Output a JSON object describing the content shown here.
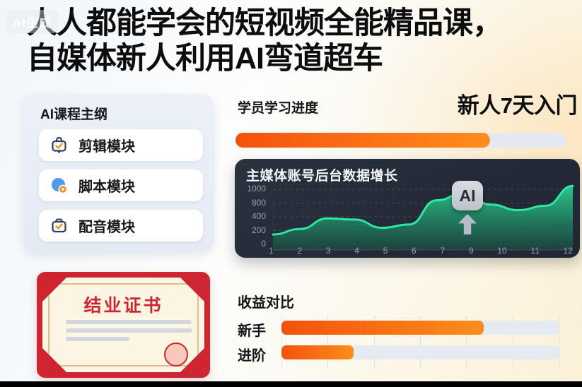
{
  "watermark": "AI生成",
  "headline": {
    "line1": "人人都能学会的短视频全能精品课，",
    "line2": "自媒体新人利用AI弯道超车"
  },
  "sidebar": {
    "title": "AI课程主纲",
    "items": [
      {
        "label": "剪辑模块",
        "icon": "briefcase-check-icon"
      },
      {
        "label": "脚本模块",
        "icon": "globe-pin-icon"
      },
      {
        "label": "配音模块",
        "icon": "toolbox-check-icon"
      }
    ]
  },
  "progress": {
    "label": "学员学习进度",
    "headline": "新人7天入门",
    "percent": 77
  },
  "chart_data": {
    "type": "area",
    "title": "主媒体账号后台数据增长",
    "x": [
      1,
      2,
      3,
      4,
      5,
      6,
      7,
      8,
      9,
      10,
      11,
      12
    ],
    "values": [
      180,
      280,
      470,
      450,
      300,
      360,
      800,
      930,
      720,
      620,
      700,
      1060
    ],
    "y_tick_labels": [
      "1000",
      "800",
      "400",
      "200",
      "0"
    ],
    "x_tick_labels": [
      "1",
      "2",
      "3",
      "4",
      "5",
      "6",
      "7",
      "9",
      "10",
      "11",
      "12"
    ],
    "ylim": [
      0,
      1100
    ],
    "grid": true,
    "legend": false,
    "annotation": {
      "label": "AI",
      "arrow": "up"
    },
    "line_color": "#2fe7a1",
    "area_top_color": "#2bcf8f",
    "area_bottom_color": "#1b4a40",
    "bg_color": "#242b39"
  },
  "earnings": {
    "title": "收益对比",
    "rows": [
      {
        "label": "新手",
        "percent": 73
      },
      {
        "label": "进阶",
        "percent": 26
      }
    ]
  },
  "certificate": {
    "title": "结业证书"
  },
  "colors": {
    "accent_orange": "#ff8d1e",
    "accent_orange_deep": "#f4520b",
    "cert_red": "#ce2531",
    "track_grey": "#e5eaf0",
    "chart_green": "#2fe7a1"
  }
}
